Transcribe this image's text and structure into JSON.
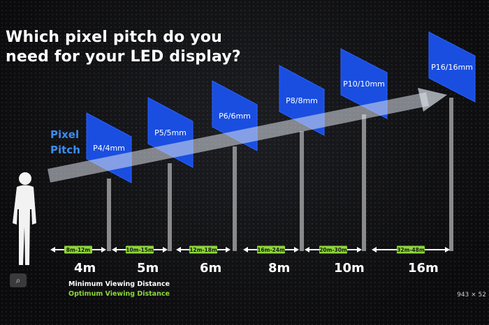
{
  "title_line1": "Which pixel pitch do you",
  "title_line2": "need for your LED display?",
  "pitch_label_line1": "Pixel",
  "pitch_label_line2": "Pitch",
  "colors": {
    "panel": "#1a4ee0",
    "optimum": "#8ed63a",
    "pitch_label": "#3d8cf0",
    "text": "#ffffff"
  },
  "displays": [
    {
      "pitch": "P4/4mm",
      "range": "8m-12m",
      "distance": "4m"
    },
    {
      "pitch": "P5/5mm",
      "range": "10m-15m",
      "distance": "5m"
    },
    {
      "pitch": "P6/6mm",
      "range": "12m-18m",
      "distance": "6m"
    },
    {
      "pitch": "P8/8mm",
      "range": "16m-24m",
      "distance": "8m"
    },
    {
      "pitch": "P10/10mm",
      "range": "20m-30m",
      "distance": "10m"
    },
    {
      "pitch": "P16/16mm",
      "range": "32m-48m",
      "distance": "16m"
    }
  ],
  "legend": {
    "minimum": "Minimum Viewing Distance",
    "optimum": "Optimum Viewing Distance"
  },
  "image_dims": "943 × 52",
  "icons": {
    "person": "person-silhouette-icon",
    "search": "search-icon"
  }
}
